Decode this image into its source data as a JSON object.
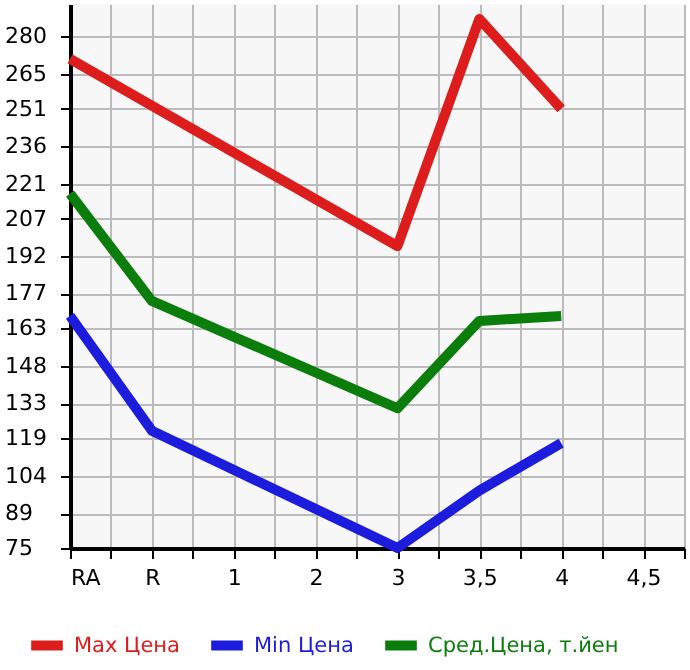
{
  "chart_data": {
    "type": "line",
    "categories": [
      "RA",
      "R",
      "1",
      "2",
      "3",
      "3,5",
      "4",
      "4,5"
    ],
    "ylim": [
      75,
      293
    ],
    "yticks": [
      75,
      89,
      104,
      119,
      133,
      148,
      163,
      177,
      192,
      207,
      221,
      236,
      251,
      265,
      280
    ],
    "grid": true,
    "legend": "bottom",
    "marker": "none",
    "line_style": "solid",
    "series": [
      {
        "name": "Max Цена",
        "color": "#dd1c1c",
        "values": [
          271,
          null,
          null,
          null,
          196,
          287,
          251,
          null
        ]
      },
      {
        "name": "Min Цена",
        "color": "#1c1cdd",
        "values": [
          168,
          122,
          null,
          null,
          75,
          98,
          117,
          null
        ]
      },
      {
        "name": "Сред.Цена, т.йен",
        "color": "#0a7d0a",
        "values": [
          217,
          174,
          null,
          null,
          131,
          166,
          168,
          null
        ]
      }
    ]
  }
}
